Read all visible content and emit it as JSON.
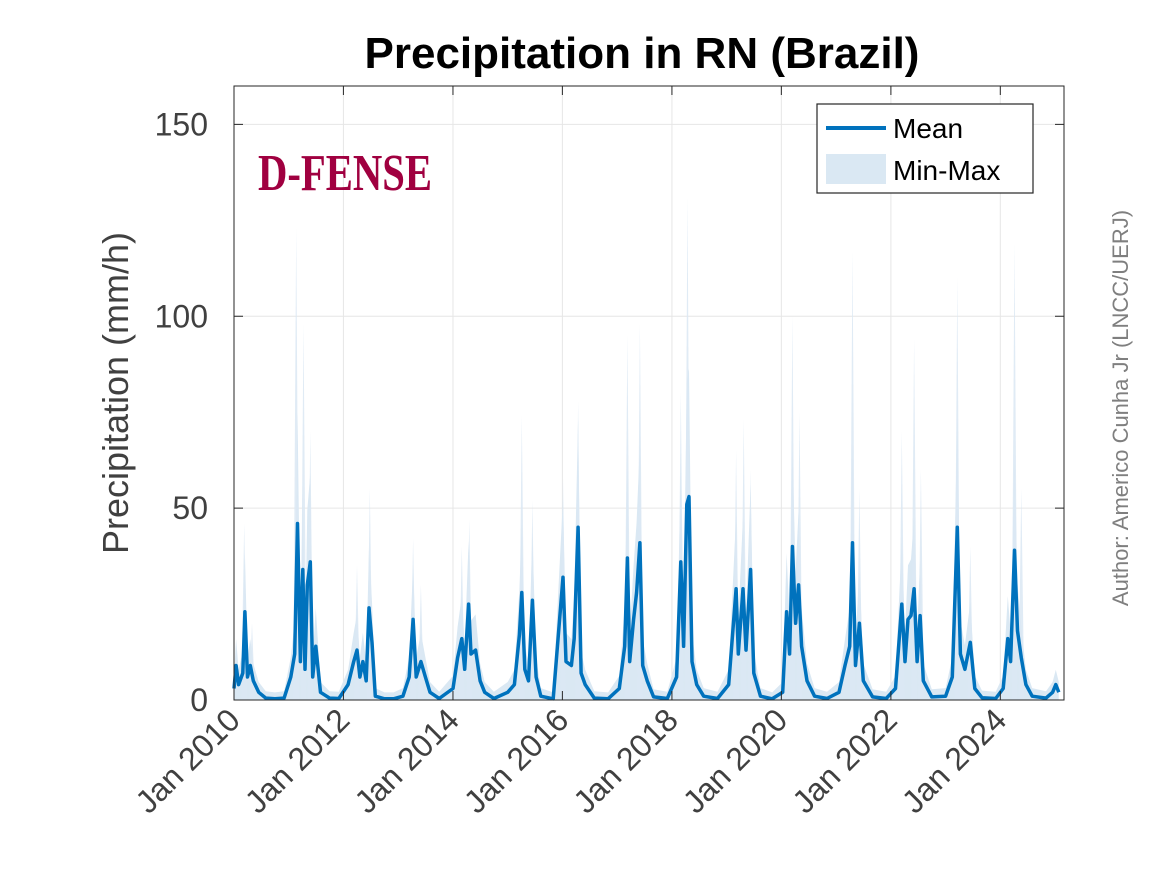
{
  "chart_data": {
    "type": "line",
    "title": "Precipitation in RN (Brazil)",
    "xlabel": "",
    "ylabel": "Precipitation (mm/h)",
    "ylim": [
      0,
      160
    ],
    "xlim": [
      "2010-01-01",
      "2025-03-01"
    ],
    "y_ticks": [
      0,
      50,
      100,
      150
    ],
    "y_tick_labels": [
      "0",
      "50",
      "100",
      "150"
    ],
    "x_ticks": [
      "2010-01-01",
      "2012-01-01",
      "2014-01-01",
      "2016-01-01",
      "2018-01-01",
      "2020-01-01",
      "2022-01-01",
      "2024-01-01"
    ],
    "x_tick_labels": [
      "Jan 2010",
      "Jan 2012",
      "Jan 2014",
      "Jan 2016",
      "Jan 2018",
      "Jan 2020",
      "Jan 2022",
      "Jan 2024"
    ],
    "grid": true,
    "legend_position": "top-right",
    "series": [
      {
        "name": "Mean",
        "kind": "line",
        "color": "#0072bd",
        "points": [
          [
            "2010-01-01",
            3
          ],
          [
            "2010-01-15",
            9
          ],
          [
            "2010-02-01",
            4
          ],
          [
            "2010-03-01",
            7
          ],
          [
            "2010-03-15",
            23
          ],
          [
            "2010-04-01",
            6
          ],
          [
            "2010-04-20",
            9
          ],
          [
            "2010-05-10",
            5
          ],
          [
            "2010-06-15",
            2
          ],
          [
            "2010-08-01",
            0.5
          ],
          [
            "2010-10-01",
            0.3
          ],
          [
            "2010-12-01",
            0.5
          ],
          [
            "2011-01-15",
            6
          ],
          [
            "2011-02-10",
            12
          ],
          [
            "2011-03-01",
            46
          ],
          [
            "2011-03-20",
            10
          ],
          [
            "2011-04-05",
            34
          ],
          [
            "2011-04-20",
            8
          ],
          [
            "2011-05-05",
            30
          ],
          [
            "2011-05-25",
            36
          ],
          [
            "2011-06-10",
            6
          ],
          [
            "2011-07-01",
            14
          ],
          [
            "2011-08-01",
            2
          ],
          [
            "2011-10-01",
            0.5
          ],
          [
            "2011-12-01",
            0.4
          ],
          [
            "2012-02-01",
            4
          ],
          [
            "2012-03-10",
            10
          ],
          [
            "2012-04-01",
            13
          ],
          [
            "2012-04-20",
            6
          ],
          [
            "2012-05-10",
            10
          ],
          [
            "2012-06-01",
            5
          ],
          [
            "2012-06-20",
            24
          ],
          [
            "2012-07-10",
            15
          ],
          [
            "2012-08-01",
            1
          ],
          [
            "2012-10-01",
            0.3
          ],
          [
            "2012-12-01",
            0.3
          ],
          [
            "2013-02-01",
            1
          ],
          [
            "2013-03-15",
            6
          ],
          [
            "2013-04-10",
            21
          ],
          [
            "2013-05-01",
            6
          ],
          [
            "2013-06-01",
            10
          ],
          [
            "2013-07-01",
            6
          ],
          [
            "2013-08-01",
            2
          ],
          [
            "2013-10-01",
            0.4
          ],
          [
            "2014-01-01",
            3
          ],
          [
            "2014-02-01",
            11
          ],
          [
            "2014-03-01",
            16
          ],
          [
            "2014-03-20",
            8
          ],
          [
            "2014-04-15",
            25
          ],
          [
            "2014-05-01",
            12
          ],
          [
            "2014-06-01",
            13
          ],
          [
            "2014-07-01",
            5
          ],
          [
            "2014-08-01",
            2
          ],
          [
            "2014-10-01",
            0.4
          ],
          [
            "2015-01-01",
            2
          ],
          [
            "2015-02-15",
            4
          ],
          [
            "2015-03-20",
            17
          ],
          [
            "2015-04-05",
            28
          ],
          [
            "2015-04-25",
            8
          ],
          [
            "2015-05-20",
            5
          ],
          [
            "2015-06-15",
            26
          ],
          [
            "2015-07-10",
            6
          ],
          [
            "2015-08-10",
            1
          ],
          [
            "2015-11-01",
            0.3
          ],
          [
            "2016-01-05",
            32
          ],
          [
            "2016-01-25",
            10
          ],
          [
            "2016-03-01",
            9
          ],
          [
            "2016-03-20",
            16
          ],
          [
            "2016-04-15",
            45
          ],
          [
            "2016-05-05",
            7
          ],
          [
            "2016-06-01",
            4
          ],
          [
            "2016-08-01",
            0.5
          ],
          [
            "2016-11-01",
            0.3
          ],
          [
            "2017-01-15",
            3
          ],
          [
            "2017-02-20",
            14
          ],
          [
            "2017-03-10",
            37
          ],
          [
            "2017-03-25",
            10
          ],
          [
            "2017-04-20",
            21
          ],
          [
            "2017-05-10",
            28
          ],
          [
            "2017-06-01",
            41
          ],
          [
            "2017-06-20",
            9
          ],
          [
            "2017-07-20",
            5
          ],
          [
            "2017-09-01",
            0.8
          ],
          [
            "2017-12-01",
            0.4
          ],
          [
            "2018-02-01",
            6
          ],
          [
            "2018-03-01",
            36
          ],
          [
            "2018-03-20",
            14
          ],
          [
            "2018-04-10",
            51
          ],
          [
            "2018-04-25",
            53
          ],
          [
            "2018-05-15",
            10
          ],
          [
            "2018-06-15",
            4
          ],
          [
            "2018-08-01",
            1
          ],
          [
            "2018-11-01",
            0.4
          ],
          [
            "2019-01-15",
            4
          ],
          [
            "2019-03-05",
            29
          ],
          [
            "2019-03-20",
            12
          ],
          [
            "2019-04-20",
            29
          ],
          [
            "2019-05-10",
            13
          ],
          [
            "2019-06-10",
            34
          ],
          [
            "2019-07-01",
            7
          ],
          [
            "2019-08-15",
            1
          ],
          [
            "2019-11-01",
            0.3
          ],
          [
            "2020-01-10",
            2
          ],
          [
            "2020-02-05",
            23
          ],
          [
            "2020-02-25",
            12
          ],
          [
            "2020-03-15",
            40
          ],
          [
            "2020-04-05",
            20
          ],
          [
            "2020-04-25",
            30
          ],
          [
            "2020-05-15",
            14
          ],
          [
            "2020-06-20",
            5
          ],
          [
            "2020-08-10",
            1
          ],
          [
            "2020-11-01",
            0.4
          ],
          [
            "2021-01-20",
            2
          ],
          [
            "2021-03-01",
            9
          ],
          [
            "2021-04-01",
            14
          ],
          [
            "2021-04-20",
            41
          ],
          [
            "2021-05-10",
            9
          ],
          [
            "2021-06-05",
            20
          ],
          [
            "2021-07-01",
            5
          ],
          [
            "2021-09-01",
            0.8
          ],
          [
            "2021-12-01",
            0.4
          ],
          [
            "2022-02-01",
            3
          ],
          [
            "2022-03-15",
            25
          ],
          [
            "2022-04-05",
            10
          ],
          [
            "2022-04-25",
            21
          ],
          [
            "2022-05-15",
            22
          ],
          [
            "2022-06-05",
            29
          ],
          [
            "2022-06-25",
            10
          ],
          [
            "2022-07-15",
            22
          ],
          [
            "2022-08-05",
            5
          ],
          [
            "2022-10-01",
            0.8
          ],
          [
            "2023-01-01",
            1
          ],
          [
            "2023-02-15",
            6
          ],
          [
            "2023-03-20",
            45
          ],
          [
            "2023-04-10",
            12
          ],
          [
            "2023-05-10",
            8
          ],
          [
            "2023-06-15",
            15
          ],
          [
            "2023-07-15",
            3
          ],
          [
            "2023-09-01",
            0.6
          ],
          [
            "2023-12-01",
            0.4
          ],
          [
            "2024-01-20",
            3
          ],
          [
            "2024-02-20",
            16
          ],
          [
            "2024-03-10",
            10
          ],
          [
            "2024-04-05",
            39
          ],
          [
            "2024-04-25",
            18
          ],
          [
            "2024-05-20",
            11
          ],
          [
            "2024-06-20",
            4
          ],
          [
            "2024-08-01",
            1
          ],
          [
            "2024-11-01",
            0.5
          ],
          [
            "2024-12-15",
            2
          ],
          [
            "2025-01-05",
            4
          ],
          [
            "2025-01-25",
            2
          ]
        ]
      },
      {
        "name": "Min-Max",
        "kind": "band",
        "color": "#dae8f3",
        "peaks": [
          [
            "2010-03-10",
            46
          ],
          [
            "2010-05-01",
            20
          ],
          [
            "2011-02-20",
            123
          ],
          [
            "2011-04-10",
            98
          ],
          [
            "2011-05-25",
            70
          ],
          [
            "2012-04-01",
            35
          ],
          [
            "2012-06-25",
            55
          ],
          [
            "2013-04-10",
            42
          ],
          [
            "2013-06-01",
            30
          ],
          [
            "2014-03-01",
            40
          ],
          [
            "2014-04-20",
            47
          ],
          [
            "2015-04-05",
            74
          ],
          [
            "2015-06-15",
            52
          ],
          [
            "2016-01-05",
            58
          ],
          [
            "2016-04-15",
            78
          ],
          [
            "2017-03-10",
            95
          ],
          [
            "2017-06-01",
            98
          ],
          [
            "2018-03-01",
            80
          ],
          [
            "2018-04-15",
            131
          ],
          [
            "2019-03-05",
            65
          ],
          [
            "2019-04-25",
            73
          ],
          [
            "2019-06-10",
            60
          ],
          [
            "2020-03-15",
            100
          ],
          [
            "2020-05-01",
            75
          ],
          [
            "2021-04-20",
            117
          ],
          [
            "2021-06-05",
            55
          ],
          [
            "2022-03-15",
            70
          ],
          [
            "2022-06-05",
            94
          ],
          [
            "2022-07-20",
            60
          ],
          [
            "2023-03-20",
            110
          ],
          [
            "2023-06-15",
            40
          ],
          [
            "2024-04-05",
            119
          ],
          [
            "2024-05-20",
            55
          ]
        ]
      }
    ],
    "annotations": [
      "Author: Americo Cunha Jr (LNCC/UERJ)"
    ]
  },
  "legend": {
    "items": [
      "Mean",
      "Min-Max"
    ]
  },
  "logo": {
    "text": "D-FENSE",
    "color": "#a00040"
  },
  "author_note": "Author: Americo Cunha Jr (LNCC/UERJ)"
}
